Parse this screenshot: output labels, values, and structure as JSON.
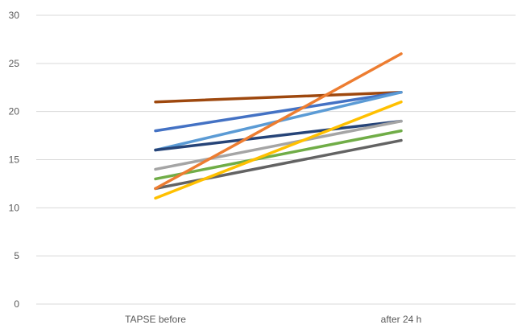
{
  "chart_data": {
    "type": "line",
    "categories": [
      "TAPSE before",
      "after 24 h"
    ],
    "ylim": [
      0,
      30
    ],
    "yticks": [
      0,
      5,
      10,
      15,
      20,
      25,
      30
    ],
    "grid": true,
    "series": [
      {
        "color": "#9E480E",
        "values": [
          21,
          22
        ]
      },
      {
        "color": "#4472C4",
        "values": [
          18,
          22
        ]
      },
      {
        "color": "#5B9BD5",
        "values": [
          16,
          22
        ]
      },
      {
        "color": "#264478",
        "values": [
          16,
          19
        ]
      },
      {
        "color": "#A5A5A5",
        "values": [
          14,
          19
        ]
      },
      {
        "color": "#70AD47",
        "values": [
          13,
          18
        ]
      },
      {
        "color": "#636363",
        "values": [
          12,
          17
        ]
      },
      {
        "color": "#FFC000",
        "values": [
          11,
          21
        ]
      },
      {
        "color": "#ED7D31",
        "values": [
          12,
          26
        ]
      }
    ]
  }
}
